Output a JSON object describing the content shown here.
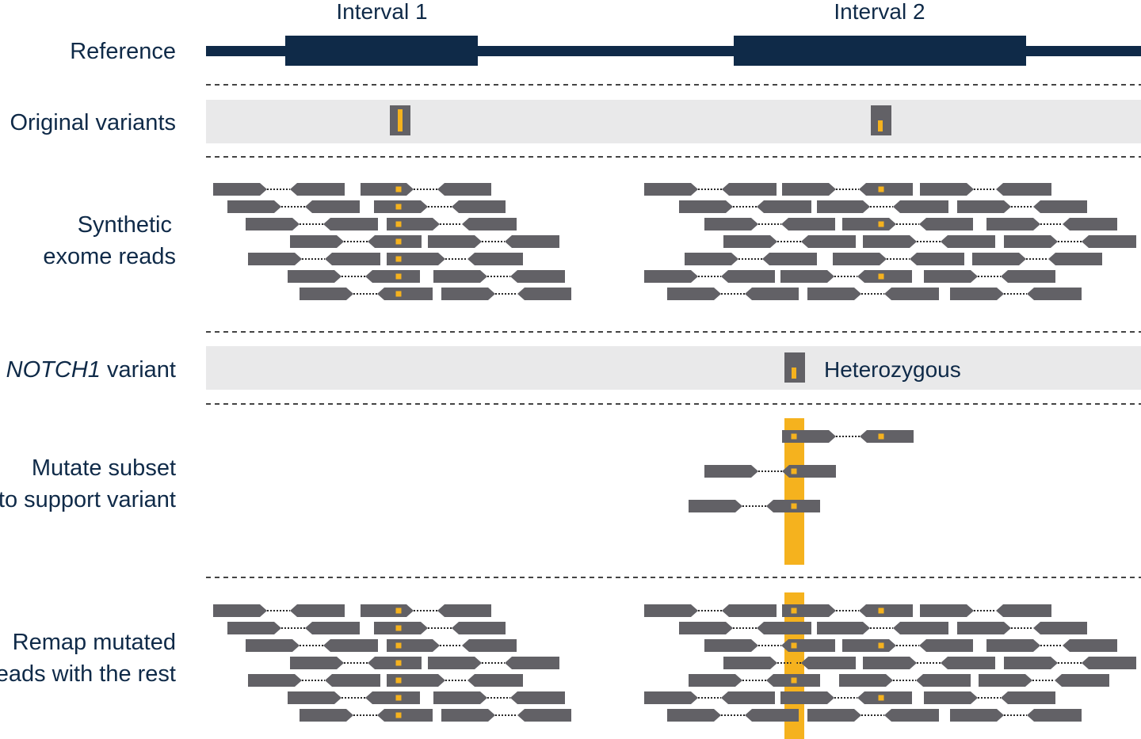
{
  "intervals": [
    "Interval 1",
    "Interval 2"
  ],
  "rows": {
    "reference": "Reference",
    "original_variants": "Original variants",
    "synthetic_line1": "Synthetic",
    "synthetic_line2": "exome reads",
    "notch_prefix": "+ ",
    "notch_gene": "NOTCH1",
    "notch_suffix": " variant",
    "mutate_line1": "Mutate subset",
    "mutate_line2": "to support variant",
    "remap_line1": "Remap mutated",
    "remap_line2": "reads with the rest"
  },
  "notch_zygosity": "Heterozygous",
  "colors": {
    "navy": "#0f2a48",
    "read_gray": "#626166",
    "band_gray": "#e9e9ea",
    "variant_yellow": "#f5b21e",
    "dashed_rule": "#444444"
  }
}
